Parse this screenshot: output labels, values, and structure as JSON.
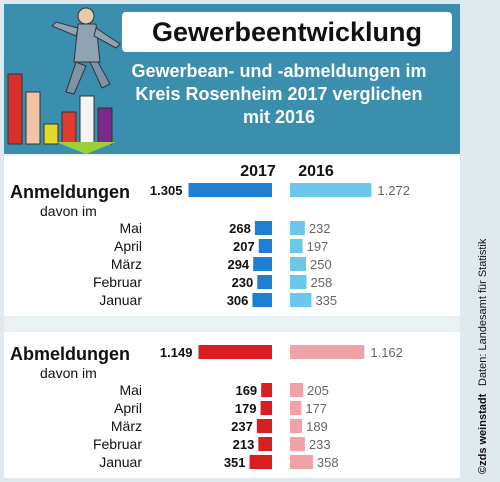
{
  "title": "Gewerbeentwicklung",
  "subtitle": [
    "Gewerbean- und -abmeldungen im",
    "Kreis Rosenheim 2017 verglichen",
    "mit 2016"
  ],
  "source": "Daten: Landesamt für Statistik",
  "credit": "©zds weinstadt",
  "colors": {
    "header": "#3a8fae",
    "anm_2017": "#1f7fd0",
    "anm_2016": "#6cc8ea",
    "abm_2017": "#d81e1e",
    "abm_2016": "#f0a2a6"
  },
  "chart_data": {
    "type": "bar",
    "years": [
      "2017",
      "2016"
    ],
    "sections": [
      {
        "label": "Anmeldungen",
        "sublabel": "davon im",
        "total": {
          "2017": 1305,
          "2016": 1272
        },
        "total_labels": {
          "2017": "1.305",
          "2016": "1.272"
        },
        "categories": [
          "Mai",
          "April",
          "März",
          "Februar",
          "Januar"
        ],
        "values_2017": [
          268,
          207,
          294,
          230,
          306
        ],
        "values_2016": [
          232,
          197,
          250,
          258,
          335
        ]
      },
      {
        "label": "Abmeldungen",
        "sublabel": "davon im",
        "total": {
          "2017": 1149,
          "2016": 1162
        },
        "total_labels": {
          "2017": "1.149",
          "2016": "1.162"
        },
        "categories": [
          "Mai",
          "April",
          "März",
          "Februar",
          "Januar"
        ],
        "values_2017": [
          169,
          179,
          237,
          213,
          351
        ],
        "values_2016": [
          205,
          177,
          189,
          233,
          358
        ]
      }
    ]
  }
}
